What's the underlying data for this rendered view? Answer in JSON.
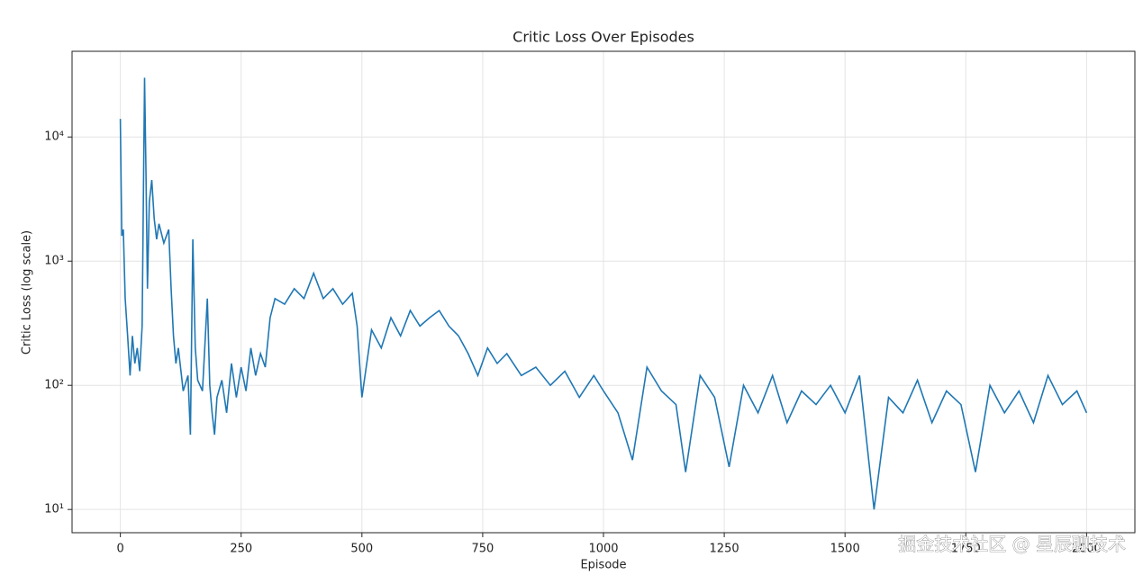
{
  "chart_data": {
    "type": "line",
    "title": "Critic Loss Over Episodes",
    "xlabel": "Episode",
    "ylabel": "Critic Loss (log scale)",
    "x": [
      0,
      3,
      6,
      10,
      15,
      20,
      25,
      30,
      35,
      40,
      45,
      50,
      53,
      56,
      60,
      65,
      70,
      75,
      80,
      90,
      100,
      105,
      110,
      115,
      120,
      130,
      140,
      145,
      150,
      155,
      160,
      170,
      180,
      185,
      190,
      195,
      200,
      210,
      220,
      230,
      240,
      250,
      260,
      270,
      280,
      290,
      300,
      310,
      320,
      340,
      360,
      380,
      400,
      420,
      440,
      460,
      480,
      490,
      500,
      520,
      540,
      560,
      580,
      600,
      620,
      640,
      660,
      680,
      700,
      720,
      740,
      760,
      780,
      800,
      830,
      860,
      890,
      920,
      950,
      980,
      1000,
      1030,
      1060,
      1090,
      1120,
      1150,
      1170,
      1200,
      1230,
      1260,
      1290,
      1320,
      1350,
      1380,
      1410,
      1440,
      1470,
      1500,
      1530,
      1560,
      1590,
      1620,
      1650,
      1680,
      1710,
      1740,
      1770,
      1800,
      1830,
      1860,
      1890,
      1920,
      1950,
      1980,
      2000
    ],
    "series": [
      {
        "name": "Critic Loss",
        "color": "#1f77b4",
        "values": [
          14000,
          1600,
          1800,
          500,
          250,
          120,
          250,
          150,
          200,
          130,
          300,
          30000,
          5000,
          600,
          3000,
          4500,
          2200,
          1500,
          2000,
          1400,
          1800,
          600,
          250,
          150,
          200,
          90,
          120,
          40,
          1500,
          200,
          110,
          90,
          500,
          100,
          60,
          40,
          80,
          110,
          60,
          150,
          80,
          140,
          90,
          200,
          120,
          180,
          140,
          350,
          500,
          450,
          600,
          500,
          800,
          500,
          600,
          450,
          550,
          300,
          80,
          280,
          200,
          350,
          250,
          400,
          300,
          350,
          400,
          300,
          250,
          180,
          120,
          200,
          150,
          180,
          120,
          140,
          100,
          130,
          80,
          120,
          90,
          60,
          25,
          140,
          90,
          70,
          20,
          120,
          80,
          22,
          100,
          60,
          120,
          50,
          90,
          70,
          100,
          60,
          120,
          10,
          80,
          60,
          110,
          50,
          90,
          70,
          20,
          100,
          60,
          90,
          50,
          120,
          70,
          90,
          60
        ]
      }
    ],
    "xlim": [
      -100,
      2100
    ],
    "xticks": [
      0,
      250,
      500,
      750,
      1000,
      1250,
      1500,
      1750,
      2000
    ],
    "ylim": [
      6.5,
      49000
    ],
    "log_y": true,
    "yticks": [
      {
        "value": 10,
        "label": "10¹"
      },
      {
        "value": 100,
        "label": "10²"
      },
      {
        "value": 1000,
        "label": "10³"
      },
      {
        "value": 10000,
        "label": "10⁴"
      }
    ],
    "grid": true
  },
  "watermark": "掘金技术社区 @ 星辰聊技术"
}
